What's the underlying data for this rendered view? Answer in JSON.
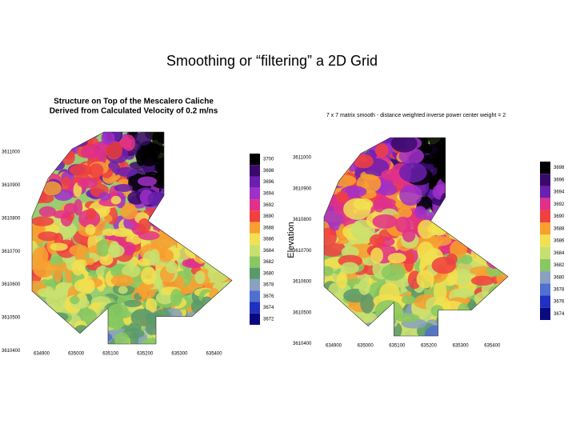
{
  "slide": {
    "title": "Smoothing or “filtering” a 2D Grid"
  },
  "left": {
    "title_lines": [
      "Structure on Top of the Mescalero Caliche",
      "Derived from Calculated Velocity of 0.2 m/ns"
    ],
    "y_labels": [
      "3611000",
      "3610900",
      "3610800",
      "3610700",
      "3610600",
      "3610500",
      "3610400"
    ],
    "x_labels": [
      "634900",
      "635000",
      "635100",
      "635200",
      "635300",
      "635400"
    ],
    "colorbar": [
      "3700",
      "3698",
      "3696",
      "3694",
      "3692",
      "3690",
      "3688",
      "3686",
      "3684",
      "3682",
      "3680",
      "3678",
      "3676",
      "3674",
      "3672"
    ],
    "axis_label": "Elevation"
  },
  "right": {
    "title": "7 x 7 matrix smooth - distance weighted inverse power center weight = 2",
    "y_labels": [
      "3611000",
      "3610900",
      "3610800",
      "3610700",
      "3610600",
      "3610500",
      "3610400"
    ],
    "x_labels": [
      "634900",
      "635000",
      "635100",
      "635200",
      "635300",
      "635400"
    ],
    "colorbar": [
      "3698",
      "3696",
      "3694",
      "3692",
      "3690",
      "3688",
      "3686",
      "3684",
      "3682",
      "3680",
      "3678",
      "3676",
      "3674"
    ]
  }
}
